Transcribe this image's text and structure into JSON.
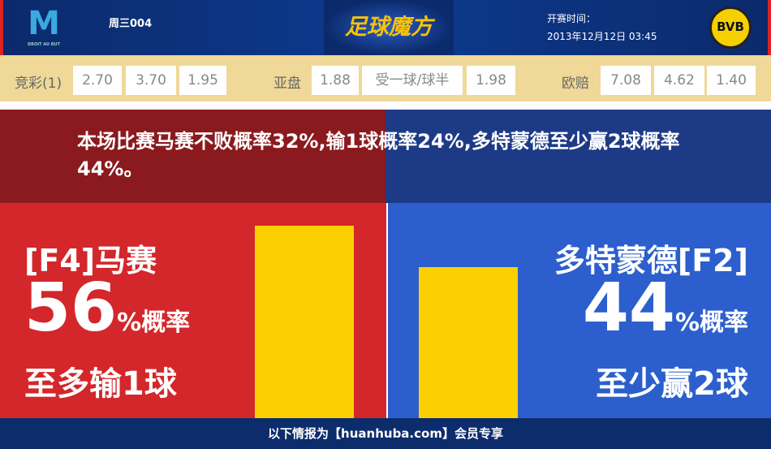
{
  "header": {
    "home_logo_text": "M",
    "home_logo_caption": "DROIT AU BUT",
    "match_no": "周三004",
    "brand": "足球魔方",
    "kickoff_label": "开赛时间：",
    "kickoff_time": "2013年12月12日 03:45",
    "away_logo_text": "BVB 09"
  },
  "odds": {
    "jc_label": "竞彩(1)",
    "jc": [
      "2.70",
      "3.70",
      "1.95"
    ],
    "ah_label": "亚盘",
    "ah": [
      "1.88",
      "受一球/球半",
      "1.98"
    ],
    "eu_label": "欧赔",
    "eu": [
      "7.08",
      "4.62",
      "1.40"
    ]
  },
  "summary": "本场比赛马赛不败概率32%,输1球概率24%,多特蒙德至少赢2球概率44%。",
  "home": {
    "team": "[F4]马赛",
    "pct": "56",
    "pct_suffix": "%概率",
    "note": "至多输1球",
    "color": "#d3272b"
  },
  "away": {
    "team": "多特蒙德[F2]",
    "pct": "44",
    "pct_suffix": "%概率",
    "note": "至少赢2球",
    "color": "#2c5fcd"
  },
  "chart_data": {
    "type": "bar",
    "categories": [
      "马赛",
      "多特蒙德"
    ],
    "values": [
      56,
      44
    ],
    "bar_color": "#fcd000"
  },
  "footer": "以下情报为【huanhuba.com】会员专享"
}
